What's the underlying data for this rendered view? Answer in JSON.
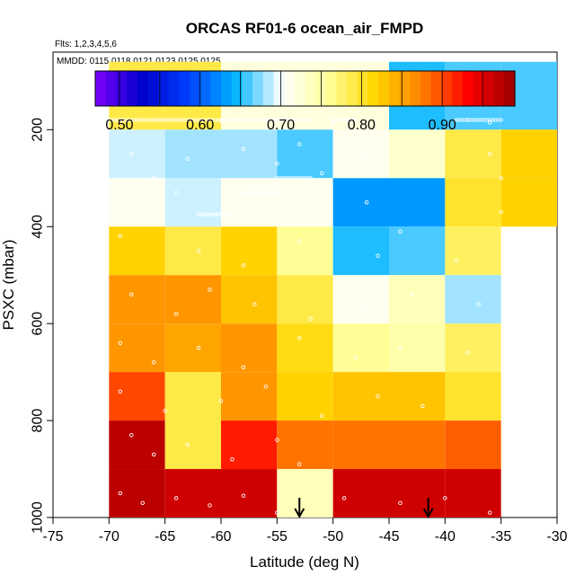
{
  "chart_data": {
    "type": "heatmap",
    "title": "ORCAS RF01-6 ocean_air_FMPD",
    "flights_label": "Flts: 1,2,3,4,5,6",
    "dates_label": "MMDD: 0115,0118,0121,0123,0125,0125",
    "xlabel": "Latitude (deg N)",
    "ylabel": "PSXC (mbar)",
    "xlim": [
      -75,
      -30
    ],
    "ylim": [
      1000,
      40
    ],
    "x_ticks": [
      -75,
      -70,
      -65,
      -60,
      -55,
      -50,
      -45,
      -40,
      -35,
      -30
    ],
    "x_tick_labels": [
      "-75",
      "-70",
      "-65",
      "-60",
      "-55",
      "-50",
      "-45",
      "-40",
      "-35",
      "-30"
    ],
    "y_ticks": [
      200,
      400,
      600,
      800,
      1000
    ],
    "y_tick_labels": [
      "200",
      "400",
      "600",
      "800",
      "1000"
    ],
    "colorbar": {
      "range": [
        0.47,
        0.99
      ],
      "ticks": [
        0.5,
        0.6,
        0.7,
        0.8,
        0.9
      ],
      "tick_labels": [
        "0.50",
        "0.60",
        "0.70",
        "0.80",
        "0.90"
      ],
      "colors": [
        "#7f00ff",
        "#0000cc",
        "#0040ff",
        "#00b4ff",
        "#ffffff",
        "#ffff99",
        "#ffd700",
        "#ff8000",
        "#ff0000",
        "#990000"
      ]
    },
    "lat_bins": [
      -70,
      -65,
      -60,
      -55,
      -50,
      -45,
      -40,
      -35
    ],
    "pres_bins": [
      100,
      200,
      300,
      400,
      500,
      600,
      700,
      800,
      900,
      1000
    ],
    "cells": [
      [
        0.79,
        0.79,
        0.72,
        0.72,
        0.72,
        0.65,
        0.66,
        0.66
      ],
      [
        0.69,
        0.68,
        0.68,
        0.66,
        0.71,
        0.73,
        0.79,
        0.82
      ],
      [
        0.71,
        0.69,
        0.71,
        0.71,
        0.63,
        0.63,
        0.8,
        0.82
      ],
      [
        0.82,
        0.79,
        0.82,
        0.76,
        0.65,
        0.66,
        0.78,
        null
      ],
      [
        0.86,
        0.86,
        0.83,
        0.79,
        0.71,
        0.74,
        0.68,
        null
      ],
      [
        0.86,
        0.85,
        0.86,
        0.81,
        0.76,
        0.75,
        0.78,
        null
      ],
      [
        0.9,
        0.79,
        0.86,
        0.82,
        0.83,
        0.83,
        0.8,
        null
      ],
      [
        0.97,
        0.79,
        0.92,
        0.88,
        0.88,
        0.88,
        0.89,
        null
      ],
      [
        0.97,
        0.96,
        0.96,
        0.74,
        0.96,
        0.96,
        0.96,
        null
      ]
    ],
    "arrows_lat": [
      -53,
      -41.5
    ],
    "samples": [
      {
        "lat": -69,
        "pres": 185
      },
      {
        "lat": -60,
        "pres": 182
      },
      {
        "lat": -55,
        "pres": 183
      },
      {
        "lat": -50,
        "pres": 185
      },
      {
        "lat": -38,
        "pres": 180
      },
      {
        "lat": -36,
        "pres": 185
      },
      {
        "lat": -68,
        "pres": 250
      },
      {
        "lat": -66,
        "pres": 300
      },
      {
        "lat": -63,
        "pres": 260
      },
      {
        "lat": -58,
        "pres": 240
      },
      {
        "lat": -55,
        "pres": 270
      },
      {
        "lat": -53,
        "pres": 230
      },
      {
        "lat": -51,
        "pres": 290
      },
      {
        "lat": -47,
        "pres": 260
      },
      {
        "lat": -36,
        "pres": 250
      },
      {
        "lat": -35,
        "pres": 300
      },
      {
        "lat": -64,
        "pres": 330
      },
      {
        "lat": -60,
        "pres": 375
      },
      {
        "lat": -56,
        "pres": 330
      },
      {
        "lat": -47,
        "pres": 350
      },
      {
        "lat": -35,
        "pres": 370
      },
      {
        "lat": -69,
        "pres": 420
      },
      {
        "lat": -62,
        "pres": 450
      },
      {
        "lat": -58,
        "pres": 480
      },
      {
        "lat": -53,
        "pres": 430
      },
      {
        "lat": -46,
        "pres": 460
      },
      {
        "lat": -44,
        "pres": 410
      },
      {
        "lat": -39,
        "pres": 470
      },
      {
        "lat": -68,
        "pres": 540
      },
      {
        "lat": -64,
        "pres": 580
      },
      {
        "lat": -61,
        "pres": 530
      },
      {
        "lat": -57,
        "pres": 560
      },
      {
        "lat": -52,
        "pres": 590
      },
      {
        "lat": -47,
        "pres": 570
      },
      {
        "lat": -43,
        "pres": 540
      },
      {
        "lat": -37,
        "pres": 560
      },
      {
        "lat": -69,
        "pres": 640
      },
      {
        "lat": -66,
        "pres": 680
      },
      {
        "lat": -62,
        "pres": 650
      },
      {
        "lat": -58,
        "pres": 690
      },
      {
        "lat": -53,
        "pres": 630
      },
      {
        "lat": -48,
        "pres": 670
      },
      {
        "lat": -44,
        "pres": 650
      },
      {
        "lat": -38,
        "pres": 660
      },
      {
        "lat": -69,
        "pres": 740
      },
      {
        "lat": -65,
        "pres": 780
      },
      {
        "lat": -60,
        "pres": 760
      },
      {
        "lat": -56,
        "pres": 730
      },
      {
        "lat": -51,
        "pres": 790
      },
      {
        "lat": -46,
        "pres": 750
      },
      {
        "lat": -42,
        "pres": 770
      },
      {
        "lat": -68,
        "pres": 830
      },
      {
        "lat": -66,
        "pres": 870
      },
      {
        "lat": -63,
        "pres": 850
      },
      {
        "lat": -59,
        "pres": 880
      },
      {
        "lat": -55,
        "pres": 840
      },
      {
        "lat": -53,
        "pres": 890
      },
      {
        "lat": -69,
        "pres": 950
      },
      {
        "lat": -67,
        "pres": 970
      },
      {
        "lat": -64,
        "pres": 960
      },
      {
        "lat": -61,
        "pres": 975
      },
      {
        "lat": -58,
        "pres": 955
      },
      {
        "lat": -55,
        "pres": 990
      },
      {
        "lat": -49,
        "pres": 960
      },
      {
        "lat": -44,
        "pres": 970
      },
      {
        "lat": -40,
        "pres": 960
      },
      {
        "lat": -36,
        "pres": 990
      }
    ],
    "sample_runs": [
      {
        "lat0": -70,
        "lat1": -52,
        "pres": 180
      },
      {
        "lat0": -50,
        "lat1": -48,
        "pres": 180
      },
      {
        "lat0": -39,
        "lat1": -35,
        "pres": 180
      },
      {
        "lat0": -58,
        "lat1": -55,
        "pres": 330
      },
      {
        "lat0": -62,
        "lat1": -59,
        "pres": 375
      },
      {
        "lat0": -55,
        "lat1": -52,
        "pres": 300
      }
    ]
  }
}
